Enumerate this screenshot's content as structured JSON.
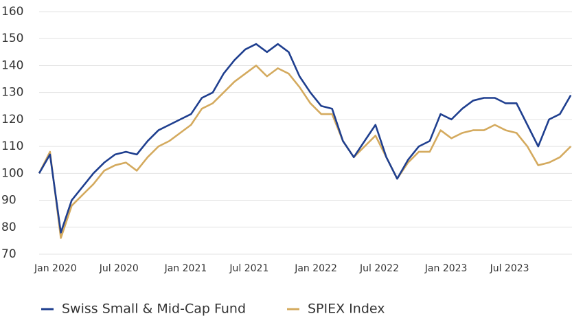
{
  "chart_data": {
    "type": "line",
    "x": [
      "2020-01",
      "2020-02",
      "2020-03",
      "2020-04",
      "2020-05",
      "2020-06",
      "2020-07",
      "2020-08",
      "2020-09",
      "2020-10",
      "2020-11",
      "2020-12",
      "2021-01",
      "2021-02",
      "2021-03",
      "2021-04",
      "2021-05",
      "2021-06",
      "2021-07",
      "2021-08",
      "2021-09",
      "2021-10",
      "2021-11",
      "2021-12",
      "2022-01",
      "2022-02",
      "2022-03",
      "2022-04",
      "2022-05",
      "2022-06",
      "2022-07",
      "2022-08",
      "2022-09",
      "2022-10",
      "2022-11",
      "2022-12",
      "2023-01",
      "2023-02",
      "2023-03",
      "2023-04",
      "2023-05",
      "2023-06",
      "2023-07",
      "2023-08",
      "2023-09",
      "2023-10",
      "2023-11",
      "2023-12",
      "2024-01",
      "2024-02"
    ],
    "series": [
      {
        "name": "Swiss Small & Mid-Cap Fund",
        "color": "#1f3f8f",
        "values": [
          100,
          107,
          78,
          90,
          95,
          100,
          104,
          107,
          108,
          107,
          112,
          116,
          118,
          120,
          122,
          128,
          130,
          137,
          142,
          146,
          148,
          145,
          148,
          145,
          136,
          130,
          125,
          124,
          112,
          106,
          112,
          118,
          106,
          98,
          105,
          110,
          112,
          122,
          120,
          124,
          127,
          128,
          128,
          126,
          126,
          118,
          110,
          120,
          122,
          129
        ]
      },
      {
        "name": "SPIEX Index",
        "color": "#d4aa5e",
        "values": [
          100,
          108,
          76,
          88,
          92,
          96,
          101,
          103,
          104,
          101,
          106,
          110,
          112,
          115,
          118,
          124,
          126,
          130,
          134,
          137,
          140,
          136,
          139,
          137,
          132,
          126,
          122,
          122,
          112,
          106,
          110,
          114,
          106,
          98,
          104,
          108,
          108,
          116,
          113,
          115,
          116,
          116,
          118,
          116,
          115,
          110,
          103,
          104,
          106,
          110
        ]
      }
    ],
    "ylim": [
      70,
      160
    ],
    "yticks": [
      70,
      80,
      90,
      100,
      110,
      120,
      130,
      140,
      150,
      160
    ],
    "xticks": [
      {
        "value": "2020-01",
        "label": "Jan 2020"
      },
      {
        "value": "2020-07",
        "label": "Jul 2020"
      },
      {
        "value": "2021-01",
        "label": "Jan 2021"
      },
      {
        "value": "2021-07",
        "label": "Jul 2021"
      },
      {
        "value": "2022-01",
        "label": "Jan 2022"
      },
      {
        "value": "2022-07",
        "label": "Jul 2022"
      },
      {
        "value": "2023-01",
        "label": "Jan 2023"
      },
      {
        "value": "2023-07",
        "label": "Jul 2023"
      }
    ],
    "grid": true,
    "legend": "bottom"
  }
}
